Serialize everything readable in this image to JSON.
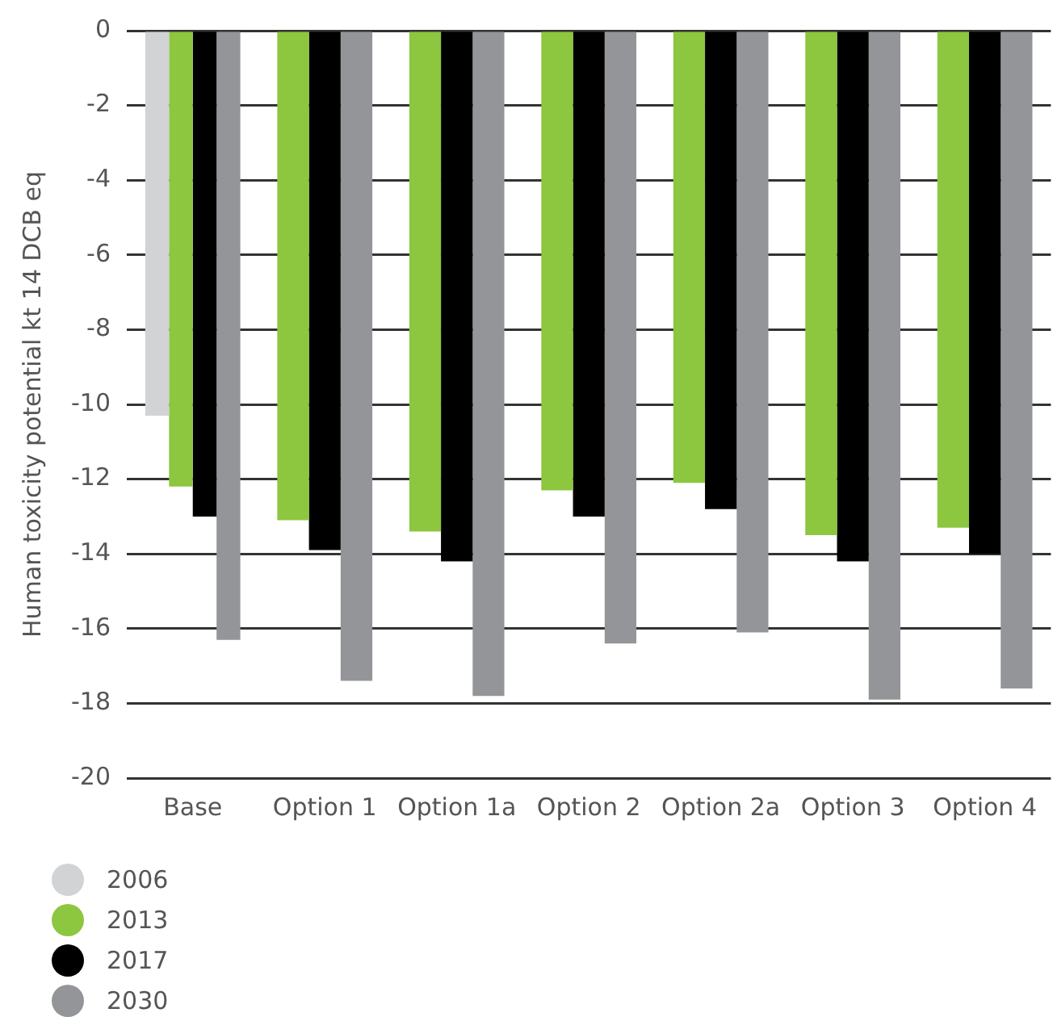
{
  "chart_data": {
    "type": "bar",
    "ylabel": "Human toxicity potential kt 14 DCB eq",
    "categories": [
      "Base",
      "Option 1",
      "Option 1a",
      "Option 2",
      "Option 2a",
      "Option 3",
      "Option 4"
    ],
    "series": [
      {
        "name": "2006",
        "color": "#d1d3d4",
        "values": [
          -10.3,
          null,
          null,
          null,
          null,
          null,
          null
        ]
      },
      {
        "name": "2013",
        "color": "#8dc63f",
        "values": [
          -12.2,
          -13.1,
          -13.4,
          -12.3,
          -12.1,
          -13.5,
          -13.3
        ]
      },
      {
        "name": "2017",
        "color": "#000000",
        "values": [
          -13.0,
          -13.9,
          -14.2,
          -13.0,
          -12.8,
          -14.2,
          -14.0
        ]
      },
      {
        "name": "2030",
        "color": "#939598",
        "values": [
          -16.3,
          -17.4,
          -17.8,
          -16.4,
          -16.1,
          -17.9,
          -17.6
        ]
      }
    ],
    "ylim": [
      -20,
      0
    ],
    "yticks": [
      -20,
      -18,
      -16,
      -14,
      -12,
      -10,
      -8,
      -6,
      -4,
      -2,
      0
    ],
    "grid": "y",
    "legend": "bottom left"
  }
}
